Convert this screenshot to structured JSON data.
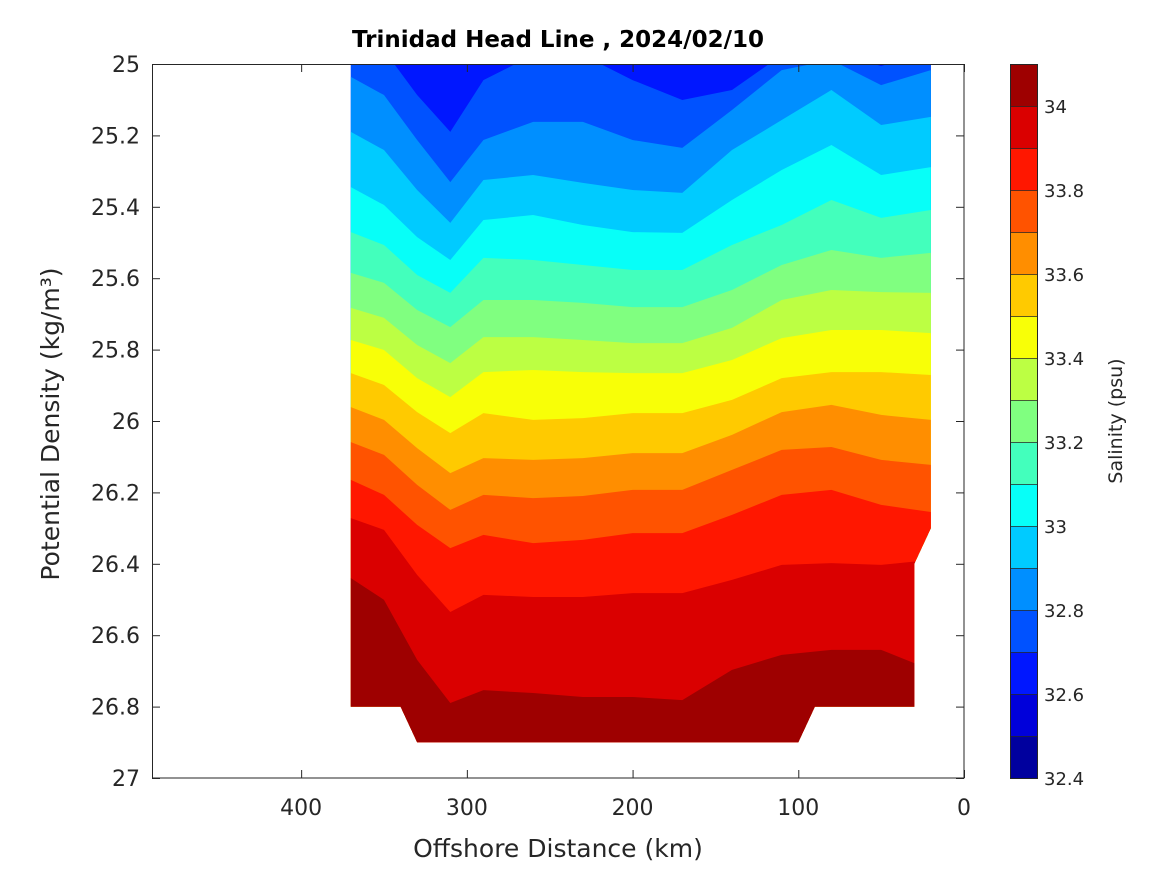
{
  "chart_data": {
    "type": "filled-contour",
    "title": "Trinidad Head Line , 2024/02/10",
    "xlabel": "Offshore Distance (km)",
    "ylabel": "Potential Density (kg/m³)",
    "xlim": [
      0,
      490
    ],
    "x_reversed": true,
    "ylim": [
      25,
      27
    ],
    "y_reversed": true,
    "xticks": [
      400,
      300,
      200,
      100,
      0
    ],
    "yticks": [
      25,
      25.2,
      25.4,
      25.6,
      25.8,
      26,
      26.2,
      26.4,
      26.6,
      26.8,
      27
    ],
    "grid": false,
    "colormap": "jet",
    "colorbar": {
      "label": "Salinity (psu)",
      "clim": [
        32.4,
        34.1
      ],
      "level_step": 0.1,
      "ticks": [
        32.4,
        32.6,
        32.8,
        33,
        33.2,
        33.4,
        33.6,
        33.8,
        34
      ]
    },
    "base_band": [
      32.6,
      32.7
    ],
    "stations_km": [
      370,
      350,
      330,
      310,
      290,
      260,
      230,
      200,
      170,
      140,
      110,
      80,
      50,
      20
    ],
    "domain_outline": [
      [
        370,
        25
      ],
      [
        20,
        25
      ],
      [
        20,
        26.3
      ],
      [
        30,
        26.4
      ],
      [
        30,
        26.8
      ],
      [
        90,
        26.8
      ],
      [
        100,
        26.9
      ],
      [
        330,
        26.9
      ],
      [
        340,
        26.8
      ],
      [
        370,
        26.8
      ]
    ],
    "contour_levels": [
      {
        "level": 32.7,
        "density": [
          24.961,
          24.961,
          25.087,
          25.19,
          25.045,
          24.975,
          24.975,
          25.045,
          25.101,
          25.073,
          24.975,
          24.961,
          25.006,
          24.961
        ]
      },
      {
        "level": 32.8,
        "density": [
          25.036,
          25.087,
          25.213,
          25.331,
          25.213,
          25.162,
          25.162,
          25.213,
          25.235,
          25.129,
          25.017,
          24.989,
          25.059,
          25.017
        ]
      },
      {
        "level": 32.9,
        "density": [
          25.19,
          25.241,
          25.353,
          25.445,
          25.325,
          25.311,
          25.333,
          25.353,
          25.361,
          25.241,
          25.157,
          25.073,
          25.171,
          25.148
        ]
      },
      {
        "level": 33.0,
        "density": [
          25.345,
          25.395,
          25.485,
          25.549,
          25.437,
          25.423,
          25.451,
          25.471,
          25.473,
          25.381,
          25.297,
          25.227,
          25.311,
          25.289
        ]
      },
      {
        "level": 33.1,
        "density": [
          25.471,
          25.507,
          25.591,
          25.641,
          25.543,
          25.549,
          25.563,
          25.577,
          25.577,
          25.507,
          25.451,
          25.381,
          25.431,
          25.409
        ]
      },
      {
        "level": 33.2,
        "density": [
          25.585,
          25.613,
          25.689,
          25.737,
          25.661,
          25.661,
          25.669,
          25.681,
          25.681,
          25.633,
          25.563,
          25.521,
          25.543,
          25.529
        ]
      },
      {
        "level": 33.3,
        "density": [
          25.683,
          25.711,
          25.787,
          25.838,
          25.765,
          25.765,
          25.773,
          25.782,
          25.782,
          25.739,
          25.661,
          25.633,
          25.639,
          25.641
        ]
      },
      {
        "level": 33.4,
        "density": [
          25.773,
          25.801,
          25.88,
          25.933,
          25.863,
          25.857,
          25.863,
          25.866,
          25.866,
          25.829,
          25.768,
          25.745,
          25.745,
          25.754
        ]
      },
      {
        "level": 33.5,
        "density": [
          25.866,
          25.899,
          25.975,
          26.034,
          25.978,
          25.997,
          25.992,
          25.978,
          25.978,
          25.941,
          25.88,
          25.863,
          25.863,
          25.871
        ]
      },
      {
        "level": 33.6,
        "density": [
          25.961,
          25.997,
          26.076,
          26.146,
          26.104,
          26.109,
          26.104,
          26.09,
          26.09,
          26.039,
          25.975,
          25.955,
          25.983,
          25.997
        ]
      },
      {
        "level": 33.7,
        "density": [
          26.059,
          26.095,
          26.179,
          26.249,
          26.207,
          26.216,
          26.21,
          26.193,
          26.193,
          26.137,
          26.081,
          26.073,
          26.109,
          26.123
        ]
      },
      {
        "level": 33.8,
        "density": [
          26.165,
          26.207,
          26.291,
          26.356,
          26.319,
          26.342,
          26.333,
          26.314,
          26.314,
          26.263,
          26.207,
          26.193,
          26.235,
          26.255
        ]
      },
      {
        "level": 33.9,
        "density": [
          26.272,
          26.305,
          26.431,
          26.535,
          26.487,
          26.493,
          26.493,
          26.482,
          26.482,
          26.445,
          26.403,
          26.398,
          26.403,
          26.389
        ]
      },
      {
        "level": 34.0,
        "density": [
          26.44,
          26.501,
          26.669,
          26.79,
          26.754,
          26.762,
          26.773,
          26.773,
          26.782,
          26.697,
          26.655,
          26.641,
          26.641,
          26.697
        ]
      }
    ]
  }
}
